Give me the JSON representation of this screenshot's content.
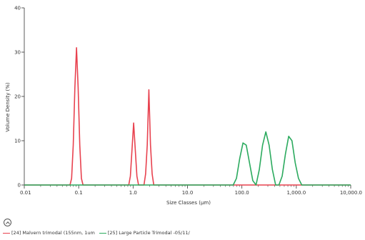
{
  "chart_data": {
    "type": "line",
    "title": "",
    "xlabel": "Size Classes (μm)",
    "ylabel": "Volume Density (%)",
    "x_scale": "log",
    "xlim": [
      0.01,
      10000
    ],
    "ylim": [
      0,
      40
    ],
    "x_ticks": [
      0.01,
      0.1,
      1,
      10,
      100,
      1000,
      10000
    ],
    "x_tick_labels": [
      "0.01",
      "0.1",
      "1.0",
      "10.0",
      "100.0",
      "1,000.0",
      "10,000.0"
    ],
    "y_ticks": [
      0,
      10,
      20,
      30,
      40
    ],
    "y_tick_labels": [
      "0",
      "10",
      "20",
      "30",
      "40"
    ],
    "grid": false,
    "legend_position": "bottom-left",
    "series": [
      {
        "name": "[24] Malvern trimodal (155nm, 1um",
        "color": "#e8424f",
        "points": [
          [
            0.01,
            0
          ],
          [
            0.0692,
            0
          ],
          [
            0.0741,
            1.5
          ],
          [
            0.0794,
            9
          ],
          [
            0.0851,
            22
          ],
          [
            0.0912,
            31
          ],
          [
            0.0977,
            22
          ],
          [
            0.1047,
            9
          ],
          [
            0.1122,
            1.5
          ],
          [
            0.1202,
            0
          ],
          [
            0.832,
            0
          ],
          [
            0.891,
            2
          ],
          [
            0.955,
            8
          ],
          [
            1.023,
            14
          ],
          [
            1.096,
            8
          ],
          [
            1.175,
            2
          ],
          [
            1.259,
            0
          ],
          [
            1.585,
            0
          ],
          [
            1.698,
            2.5
          ],
          [
            1.82,
            9
          ],
          [
            1.95,
            21.5
          ],
          [
            2.089,
            9
          ],
          [
            2.239,
            2.5
          ],
          [
            2.399,
            0
          ],
          [
            10000,
            0
          ]
        ]
      },
      {
        "name": "[25] Large Particle Trimodal -05/11/",
        "color": "#2baa5e",
        "points": [
          [
            0.01,
            0
          ],
          [
            69.2,
            0
          ],
          [
            79.4,
            1.5
          ],
          [
            91.2,
            6
          ],
          [
            104.7,
            9.5
          ],
          [
            120.2,
            9
          ],
          [
            138,
            5
          ],
          [
            158.5,
            1
          ],
          [
            181.97,
            0
          ],
          [
            208.9,
            3.5
          ],
          [
            239.9,
            9
          ],
          [
            275.4,
            12
          ],
          [
            316.2,
            9
          ],
          [
            363.1,
            3.5
          ],
          [
            416.9,
            0
          ],
          [
            478.6,
            0
          ],
          [
            549.5,
            2
          ],
          [
            631,
            7
          ],
          [
            724.4,
            11
          ],
          [
            831.8,
            10
          ],
          [
            954.99,
            5
          ],
          [
            1096,
            1.5
          ],
          [
            1259,
            0
          ],
          [
            10000,
            0
          ]
        ]
      }
    ]
  },
  "ui": {
    "collapse_icon": "chevron-up-icon"
  }
}
